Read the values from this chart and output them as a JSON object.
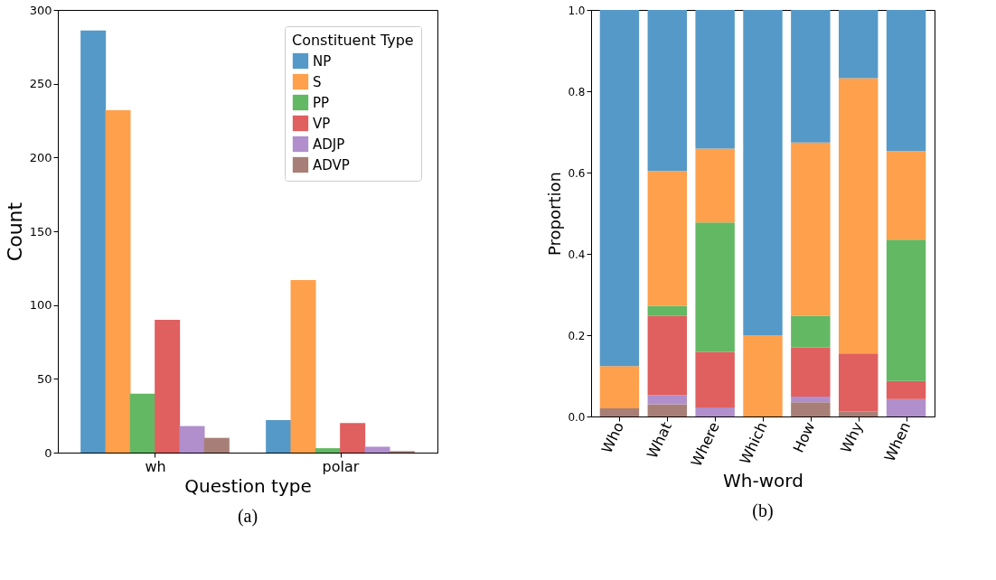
{
  "chart_data": [
    {
      "type": "bar",
      "categories": [
        "wh",
        "polar"
      ],
      "xlabel": "Question type",
      "ylabel": "Count",
      "ylim": [
        0,
        300
      ],
      "yticks": [
        0,
        50,
        100,
        150,
        200,
        250,
        300
      ],
      "grid": false,
      "legend": "top right",
      "legend_title": "Constituent Type",
      "annotations": [
        "(a)"
      ],
      "series": [
        {
          "name": "NP",
          "color": "#5599c8",
          "values": [
            286,
            22
          ]
        },
        {
          "name": "S",
          "color": "#ffa04c",
          "values": [
            232,
            117
          ]
        },
        {
          "name": "PP",
          "color": "#63b863",
          "values": [
            40,
            3
          ]
        },
        {
          "name": "VP",
          "color": "#e05f5f",
          "values": [
            90,
            20
          ]
        },
        {
          "name": "ADJP",
          "color": "#b08fcc",
          "values": [
            18,
            4
          ]
        },
        {
          "name": "ADVP",
          "color": "#a87f76",
          "values": [
            10,
            1
          ]
        }
      ]
    },
    {
      "type": "bar",
      "stacked": true,
      "categories": [
        "Who",
        "What",
        "Where",
        "Which",
        "How",
        "Why",
        "When"
      ],
      "xlabel": "Wh-word",
      "ylabel": "Proportion",
      "ylim": [
        0,
        1
      ],
      "yticks": [
        {
          "value": 0,
          "label": "0.0"
        },
        0.2,
        0.4,
        0.6,
        0.8,
        {
          "value": 1,
          "label": "1.0"
        }
      ],
      "grid": false,
      "legend": false,
      "annotations": [
        "(b)"
      ],
      "series": [
        {
          "color": "#a87f76",
          "values": [
            0.02,
            0.03,
            0,
            0,
            0.035,
            0.012,
            0
          ]
        },
        {
          "color": "#b08fcc",
          "values": [
            0,
            0.022,
            0.022,
            0,
            0.014,
            0,
            0.043
          ]
        },
        {
          "color": "#e05f5f",
          "values": [
            0,
            0.195,
            0.137,
            0,
            0.121,
            0.143,
            0.044
          ]
        },
        {
          "color": "#63b863",
          "values": [
            0,
            0.025,
            0.318,
            0,
            0.078,
            0,
            0.348
          ]
        },
        {
          "color": "#ffa04c",
          "values": [
            0.104,
            0.332,
            0.182,
            0.2,
            0.426,
            0.677,
            0.218
          ]
        },
        {
          "color": "#5599c8",
          "values": [
            0.876,
            0.396,
            0.341,
            0.8,
            0.326,
            0.168,
            0.347
          ]
        }
      ]
    }
  ]
}
